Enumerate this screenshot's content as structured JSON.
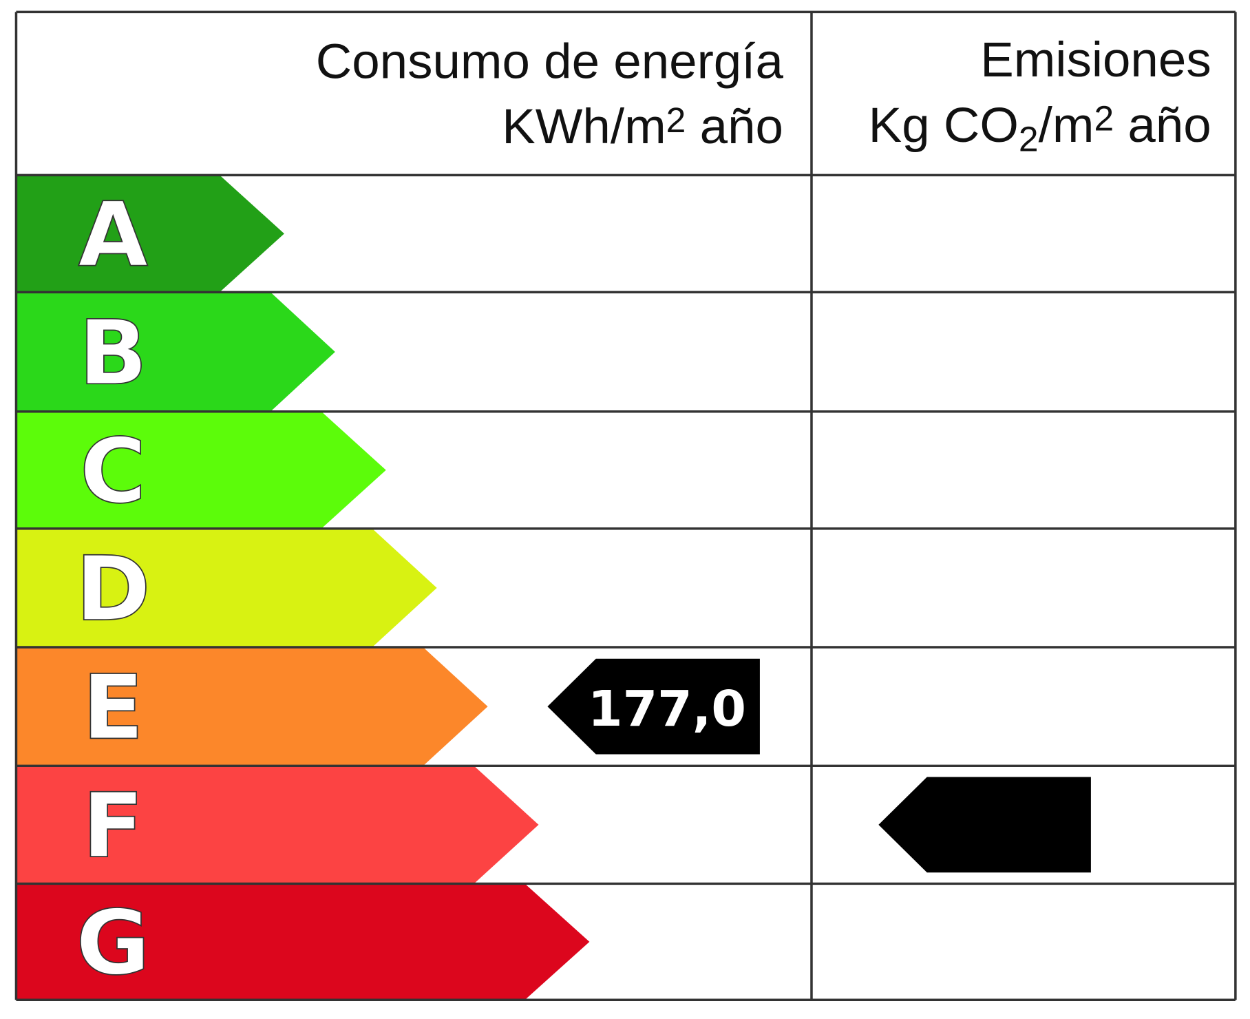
{
  "header": {
    "energy_title": "Consumo de energía",
    "energy_unit": [
      "KWh/m",
      "2",
      " año"
    ],
    "emissions_title": "Emisiones",
    "emissions_unit": [
      "Kg CO",
      "2",
      "/m",
      "2",
      " año"
    ]
  },
  "ratings": [
    {
      "label": "A",
      "color": "#22a017"
    },
    {
      "label": "B",
      "color": "#2bd81a"
    },
    {
      "label": "C",
      "color": "#5cfc0a"
    },
    {
      "label": "D",
      "color": "#d8f212"
    },
    {
      "label": "E",
      "color": "#fc872a"
    },
    {
      "label": "F",
      "color": "#fc4343"
    },
    {
      "label": "G",
      "color": "#dc061d"
    }
  ],
  "energy": {
    "rating": "E",
    "value": "177,0"
  },
  "emissions": {
    "rating": "F"
  }
}
